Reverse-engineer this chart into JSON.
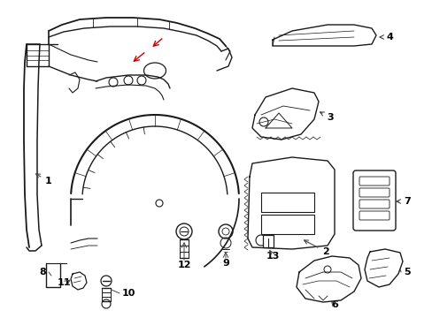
{
  "background_color": "#ffffff",
  "line_color": "#1a1a1a",
  "callout_color": "#444444",
  "red_color": "#cc0000",
  "fig_width": 4.89,
  "fig_height": 3.6,
  "dpi": 100
}
